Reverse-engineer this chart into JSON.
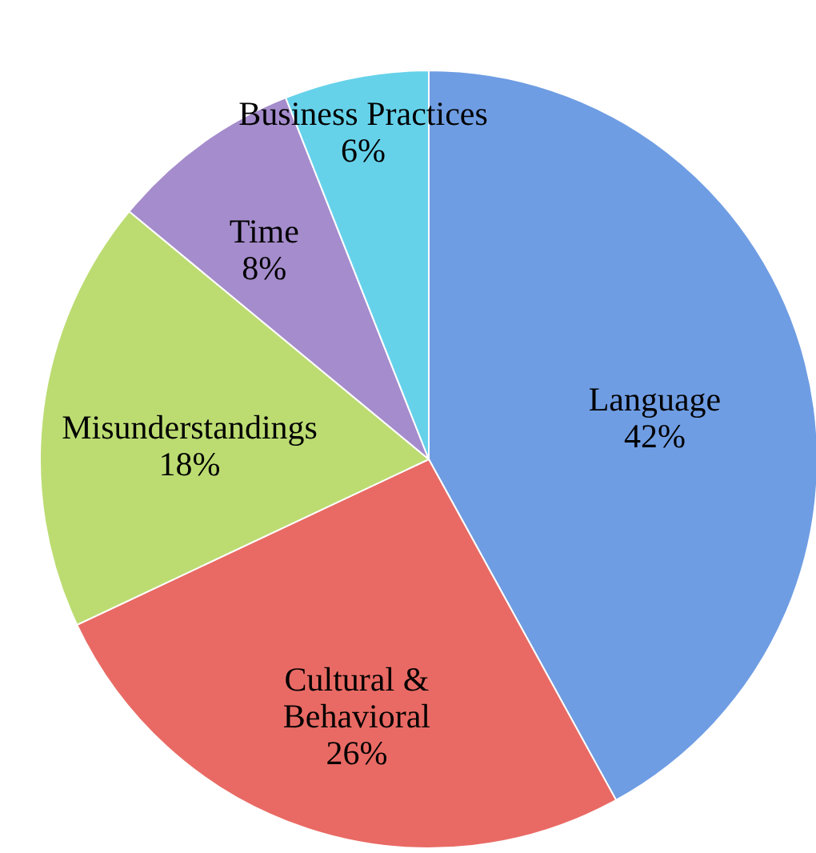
{
  "chart_data": {
    "type": "pie",
    "categories": [
      "Language",
      "Cultural &\nBehavioral",
      "Misunderstandings",
      "Time",
      "Business Practices"
    ],
    "values": [
      42,
      26,
      18,
      8,
      6
    ],
    "value_labels": [
      "42%",
      "26%",
      "18%",
      "8%",
      "6%"
    ],
    "colors": [
      "#6f9de3",
      "#e96a64",
      "#bcdc72",
      "#a58ccc",
      "#66d2ea"
    ]
  }
}
